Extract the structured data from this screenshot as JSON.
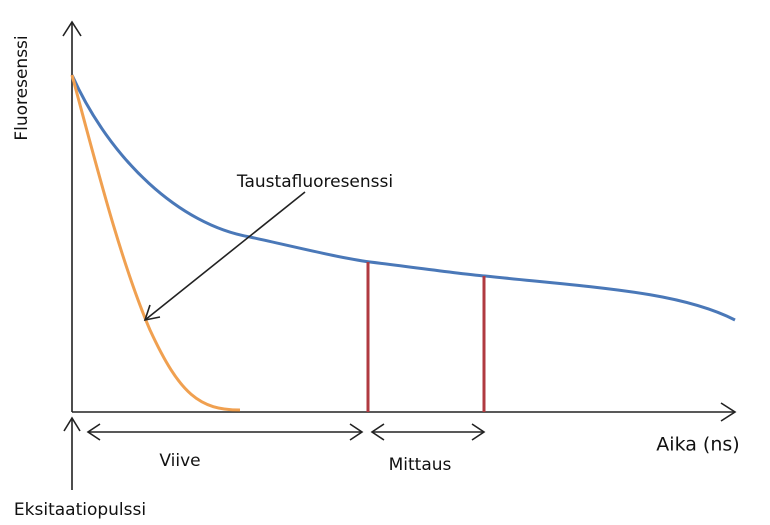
{
  "axes": {
    "y_label": "Fluoresenssi",
    "x_label": "Aika (ns)"
  },
  "annotations": {
    "background": "Taustafluoresenssi",
    "delay": "Viive",
    "measurement": "Mittaus",
    "excitation": "Eksitaatiopulssi"
  }
}
